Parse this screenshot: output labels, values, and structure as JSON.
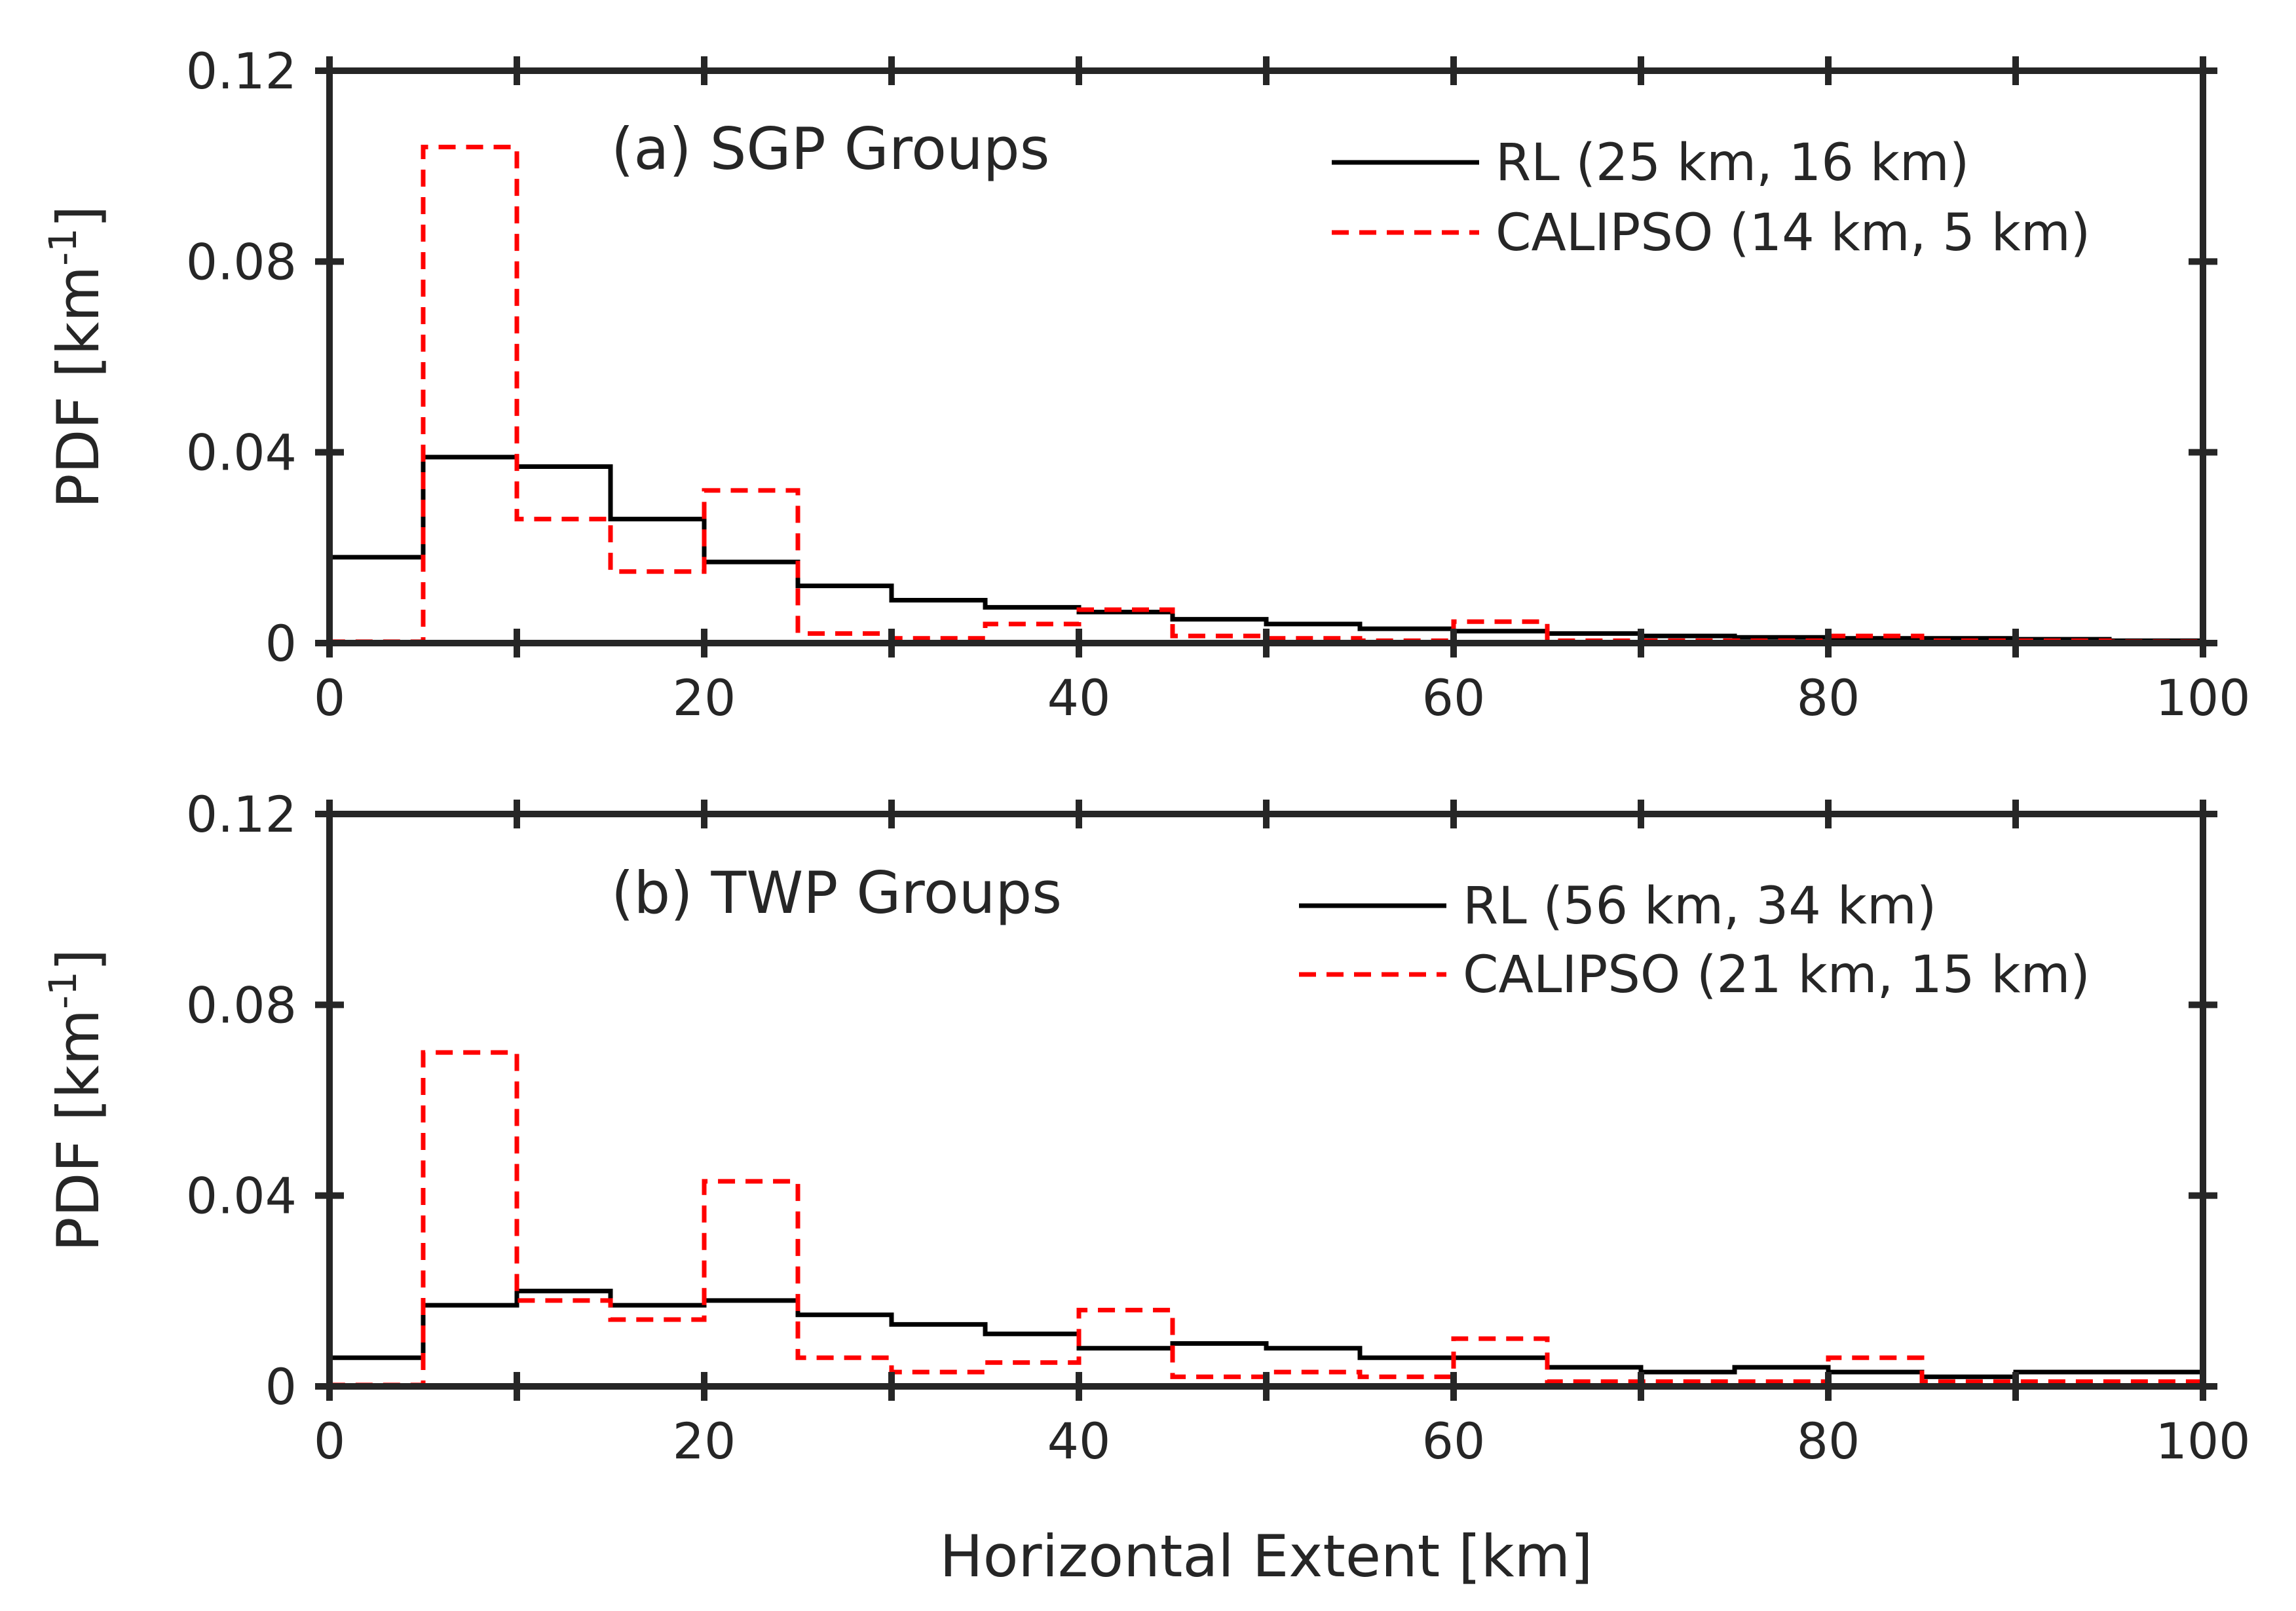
{
  "chart_data": [
    {
      "type": "histogram-step",
      "title": "(a) SGP Groups",
      "xlabel": "Horizontal Extent [km]",
      "ylabel": "PDF [km",
      "ylabel_sup": "-1",
      "ylabel_close": "]",
      "xlim": [
        0,
        100
      ],
      "ylim": [
        0,
        0.12
      ],
      "xticks": [
        0,
        20,
        40,
        60,
        80,
        100
      ],
      "xtick_labels": [
        "0",
        "20",
        "40",
        "60",
        "80",
        "100"
      ],
      "yticks": [
        0,
        0.04,
        0.08,
        0.12
      ],
      "ytick_labels": [
        "0",
        "0.04",
        "0.08",
        "0.12"
      ],
      "bin_edges": [
        0,
        5,
        10,
        15,
        20,
        25,
        30,
        35,
        40,
        45,
        50,
        55,
        60,
        65,
        70,
        75,
        80,
        85,
        90,
        95,
        100
      ],
      "series": [
        {
          "name": "RL (25 km, 16 km)",
          "color": "#000000",
          "style": "solid",
          "values": [
            0.018,
            0.039,
            0.037,
            0.026,
            0.017,
            0.012,
            0.009,
            0.0075,
            0.0065,
            0.005,
            0.004,
            0.003,
            0.0025,
            0.002,
            0.0015,
            0.0012,
            0.001,
            0.001,
            0.0008,
            0.0005
          ]
        },
        {
          "name": "CALIPSO (14 km, 5 km)",
          "color": "#ff0000",
          "style": "dashed",
          "values": [
            0.0003,
            0.104,
            0.026,
            0.015,
            0.032,
            0.002,
            0.001,
            0.004,
            0.007,
            0.0015,
            0.001,
            0.0005,
            0.0045,
            0.0005,
            0.0005,
            0.0005,
            0.0015,
            0.0005,
            0.0005,
            0.0003
          ]
        }
      ]
    },
    {
      "type": "histogram-step",
      "title": "(b) TWP Groups",
      "xlabel": "Horizontal Extent [km]",
      "ylabel": "PDF [km",
      "ylabel_sup": "-1",
      "ylabel_close": "]",
      "xlim": [
        0,
        100
      ],
      "ylim": [
        0,
        0.12
      ],
      "xticks": [
        0,
        20,
        40,
        60,
        80,
        100
      ],
      "xtick_labels": [
        "0",
        "20",
        "40",
        "60",
        "80",
        "100"
      ],
      "yticks": [
        0,
        0.04,
        0.08,
        0.12
      ],
      "ytick_labels": [
        "0",
        "0.04",
        "0.08",
        "0.12"
      ],
      "bin_edges": [
        0,
        5,
        10,
        15,
        20,
        25,
        30,
        35,
        40,
        45,
        50,
        55,
        60,
        65,
        70,
        75,
        80,
        85,
        90,
        95,
        100
      ],
      "series": [
        {
          "name": "RL (56 km, 34 km)",
          "color": "#000000",
          "style": "solid",
          "values": [
            0.006,
            0.017,
            0.02,
            0.017,
            0.018,
            0.015,
            0.013,
            0.011,
            0.008,
            0.009,
            0.008,
            0.006,
            0.006,
            0.004,
            0.003,
            0.004,
            0.003,
            0.002,
            0.003,
            0.003
          ]
        },
        {
          "name": "CALIPSO (21 km, 15 km)",
          "color": "#ff0000",
          "style": "dashed",
          "values": [
            0.0003,
            0.07,
            0.018,
            0.014,
            0.043,
            0.006,
            0.003,
            0.005,
            0.016,
            0.002,
            0.003,
            0.002,
            0.01,
            0.001,
            0.001,
            0.001,
            0.006,
            0.001,
            0.001,
            0.001
          ]
        }
      ]
    }
  ]
}
